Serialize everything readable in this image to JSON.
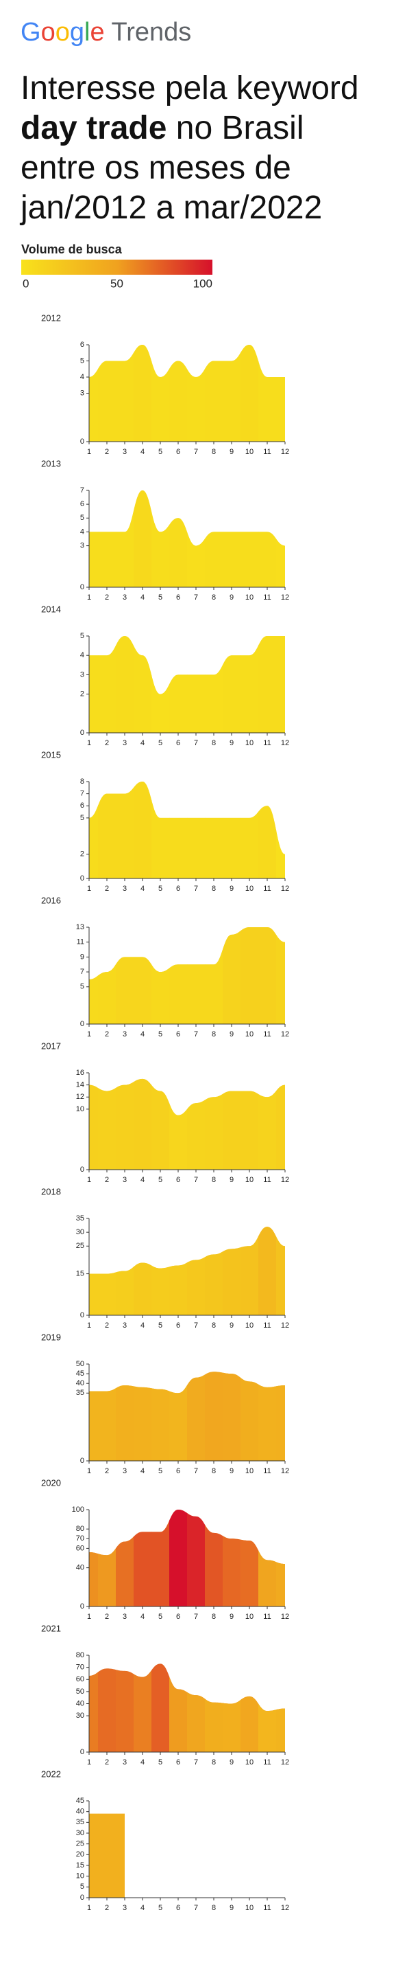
{
  "brand": [
    "Google",
    "Trends"
  ],
  "title": [
    "Interesse pela keyword",
    "day trade",
    " no Brasil",
    "entre os meses de",
    "jan/2012 a mar/2022"
  ],
  "color_scale": {
    "title": "Volume de busca",
    "ticks": [
      0,
      50,
      100
    ],
    "colors": [
      "#f8e21c",
      "#f0a21f",
      "#d6102b"
    ]
  },
  "chart_data": [
    {
      "type": "area",
      "title": "2012",
      "categories": [
        "1",
        "2",
        "3",
        "4",
        "5",
        "6",
        "7",
        "8",
        "9",
        "10",
        "11",
        "12"
      ],
      "values": [
        4,
        5,
        5,
        6,
        4,
        5,
        4,
        5,
        5,
        6,
        4,
        4
      ],
      "ylim": [
        0,
        6
      ],
      "yticks": [
        0,
        3,
        4,
        5,
        6
      ]
    },
    {
      "type": "area",
      "title": "2013",
      "categories": [
        "1",
        "2",
        "3",
        "4",
        "5",
        "6",
        "7",
        "8",
        "9",
        "10",
        "11",
        "12"
      ],
      "values": [
        4,
        4,
        4,
        7,
        4,
        5,
        3,
        4,
        4,
        4,
        4,
        3
      ],
      "ylim": [
        0,
        7
      ],
      "yticks": [
        0,
        3,
        4,
        5,
        6,
        7
      ]
    },
    {
      "type": "area",
      "title": "2014",
      "categories": [
        "1",
        "2",
        "3",
        "4",
        "5",
        "6",
        "7",
        "8",
        "9",
        "10",
        "11",
        "12"
      ],
      "values": [
        4,
        4,
        5,
        4,
        2,
        3,
        3,
        3,
        4,
        4,
        5,
        5
      ],
      "ylim": [
        0,
        5
      ],
      "yticks": [
        0,
        2,
        3,
        4,
        5
      ]
    },
    {
      "type": "area",
      "title": "2015",
      "categories": [
        "1",
        "2",
        "3",
        "4",
        "5",
        "6",
        "7",
        "8",
        "9",
        "10",
        "11",
        "12"
      ],
      "values": [
        5,
        7,
        7,
        8,
        5,
        5,
        5,
        5,
        5,
        5,
        6,
        2
      ],
      "ylim": [
        0,
        8
      ],
      "yticks": [
        0,
        2,
        5,
        6,
        7,
        8
      ]
    },
    {
      "type": "area",
      "title": "2016",
      "categories": [
        "1",
        "2",
        "3",
        "4",
        "5",
        "6",
        "7",
        "8",
        "9",
        "10",
        "11",
        "12"
      ],
      "values": [
        6,
        7,
        9,
        9,
        7,
        8,
        8,
        8,
        12,
        13,
        13,
        11
      ],
      "ylim": [
        0,
        13
      ],
      "yticks": [
        0,
        5,
        7,
        9,
        11,
        13
      ]
    },
    {
      "type": "area",
      "title": "2017",
      "categories": [
        "1",
        "2",
        "3",
        "4",
        "5",
        "6",
        "7",
        "8",
        "9",
        "10",
        "11",
        "12"
      ],
      "values": [
        14,
        13,
        14,
        15,
        13,
        9,
        11,
        12,
        13,
        13,
        12,
        14
      ],
      "ylim": [
        0,
        16
      ],
      "yticks": [
        0,
        10,
        12,
        14,
        16
      ]
    },
    {
      "type": "area",
      "title": "2018",
      "categories": [
        "1",
        "2",
        "3",
        "4",
        "5",
        "6",
        "7",
        "8",
        "9",
        "10",
        "11",
        "12"
      ],
      "values": [
        15,
        15,
        16,
        19,
        17,
        18,
        20,
        22,
        24,
        25,
        32,
        25
      ],
      "ylim": [
        0,
        35
      ],
      "yticks": [
        0,
        15,
        25,
        30,
        35
      ]
    },
    {
      "type": "area",
      "title": "2019",
      "categories": [
        "1",
        "2",
        "3",
        "4",
        "5",
        "6",
        "7",
        "8",
        "9",
        "10",
        "11",
        "12"
      ],
      "values": [
        36,
        36,
        39,
        38,
        37,
        35,
        43,
        46,
        45,
        41,
        38,
        39
      ],
      "ylim": [
        0,
        50
      ],
      "yticks": [
        0,
        35,
        40,
        45,
        50
      ]
    },
    {
      "type": "area",
      "title": "2020",
      "categories": [
        "1",
        "2",
        "3",
        "4",
        "5",
        "6",
        "7",
        "8",
        "9",
        "10",
        "11",
        "12"
      ],
      "values": [
        56,
        53,
        67,
        77,
        77,
        100,
        93,
        76,
        70,
        68,
        48,
        44
      ],
      "ylim": [
        0,
        100
      ],
      "yticks": [
        0,
        40,
        60,
        70,
        80,
        100
      ]
    },
    {
      "type": "area",
      "title": "2021",
      "categories": [
        "1",
        "2",
        "3",
        "4",
        "5",
        "6",
        "7",
        "8",
        "9",
        "10",
        "11",
        "12"
      ],
      "values": [
        63,
        69,
        67,
        62,
        73,
        52,
        47,
        41,
        40,
        46,
        34,
        36
      ],
      "ylim": [
        0,
        80
      ],
      "yticks": [
        0,
        30,
        40,
        50,
        60,
        70,
        80
      ]
    },
    {
      "type": "area",
      "title": "2022",
      "categories": [
        "1",
        "2",
        "3",
        "4",
        "5",
        "6",
        "7",
        "8",
        "9",
        "10",
        "11",
        "12"
      ],
      "values": [
        39,
        39,
        39,
        null,
        null,
        null,
        null,
        null,
        null,
        null,
        null,
        null
      ],
      "ylim": [
        0,
        45
      ],
      "yticks": [
        0,
        5,
        10,
        15,
        20,
        25,
        30,
        35,
        40,
        45
      ]
    }
  ]
}
